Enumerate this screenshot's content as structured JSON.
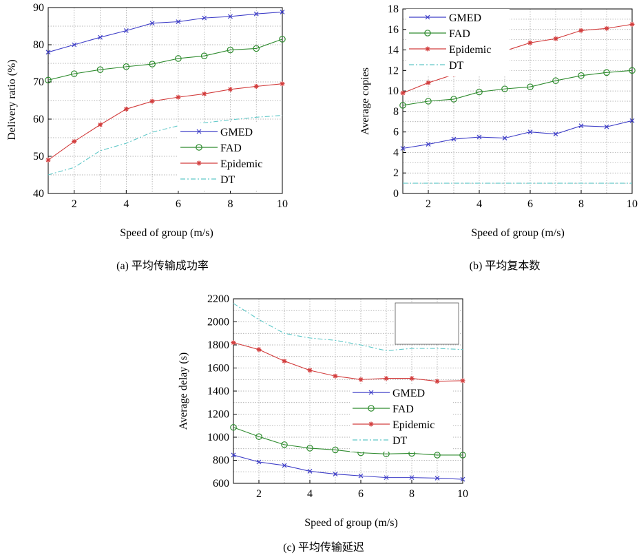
{
  "colors": {
    "GMED": "#3f3fc8",
    "FAD": "#2e8b2e",
    "Epidemic": "#d23c3c",
    "DT": "#5fc8c8",
    "grid": "#9a9a9a",
    "frame": "#000000"
  },
  "chart_data": [
    {
      "id": "a",
      "type": "line",
      "caption": "(a)  平均传输成功率",
      "xlabel": "Speed of group (m/s)",
      "ylabel": "Delivery ratio (%)",
      "xlim": [
        1,
        10
      ],
      "ylim": [
        40,
        90
      ],
      "xticks": [
        2,
        4,
        6,
        8,
        10
      ],
      "yticks": [
        40,
        50,
        60,
        70,
        80,
        90
      ],
      "grid": true,
      "legend_position": "bottom-right",
      "x": [
        1,
        2,
        3,
        4,
        5,
        6,
        7,
        8,
        9,
        10
      ],
      "series": [
        {
          "name": "GMED",
          "marker": "x",
          "style": "solid",
          "values": [
            78,
            80,
            82,
            83.8,
            85.8,
            86.2,
            87.2,
            87.6,
            88.3,
            88.8
          ]
        },
        {
          "name": "FAD",
          "marker": "o",
          "style": "solid",
          "values": [
            70.5,
            72.2,
            73.3,
            74.1,
            74.8,
            76.3,
            77,
            78.6,
            79,
            81.5
          ]
        },
        {
          "name": "Epidemic",
          "marker": "*",
          "style": "solid",
          "values": [
            49,
            54,
            58.5,
            62.7,
            64.8,
            65.9,
            66.8,
            68,
            68.8,
            69.5
          ]
        },
        {
          "name": "DT",
          "marker": "none",
          "style": "dashdot",
          "values": [
            45,
            47,
            51.5,
            53.5,
            56.5,
            58.2,
            59,
            59.8,
            60.5,
            61
          ]
        }
      ]
    },
    {
      "id": "b",
      "type": "line",
      "caption": "(b)  平均复本数",
      "xlabel": "Speed of group (m/s)",
      "ylabel": "Average copies",
      "xlim": [
        1,
        10
      ],
      "ylim": [
        0,
        18
      ],
      "xticks": [
        2,
        4,
        6,
        8,
        10
      ],
      "yticks": [
        0,
        2,
        4,
        6,
        8,
        10,
        12,
        14,
        16,
        18
      ],
      "grid": true,
      "legend_position": "top-left",
      "x": [
        1,
        2,
        3,
        4,
        5,
        6,
        7,
        8,
        9,
        10
      ],
      "series": [
        {
          "name": "GMED",
          "marker": "x",
          "style": "solid",
          "values": [
            4.4,
            4.8,
            5.3,
            5.5,
            5.4,
            6,
            5.8,
            6.6,
            6.5,
            7.1
          ]
        },
        {
          "name": "FAD",
          "marker": "o",
          "style": "solid",
          "values": [
            8.6,
            9,
            9.2,
            9.9,
            10.2,
            10.4,
            11,
            11.5,
            11.8,
            12
          ]
        },
        {
          "name": "Epidemic",
          "marker": "*",
          "style": "solid",
          "values": [
            9.8,
            10.8,
            11.6,
            12.9,
            13.9,
            14.7,
            15.1,
            15.9,
            16.1,
            16.5
          ]
        },
        {
          "name": "DT",
          "marker": "none",
          "style": "dashdot",
          "values": [
            1,
            1,
            1,
            1,
            1,
            1,
            1,
            1,
            1,
            1
          ]
        }
      ]
    },
    {
      "id": "c",
      "type": "line",
      "caption": "(c)  平均传输延迟",
      "xlabel": "Speed of group (m/s)",
      "ylabel": "Average delay (s)",
      "xlim": [
        1,
        10
      ],
      "ylim": [
        600,
        2200
      ],
      "xticks": [
        2,
        4,
        6,
        8,
        10
      ],
      "yticks": [
        600,
        800,
        1000,
        1200,
        1400,
        1600,
        1800,
        2000,
        2200
      ],
      "grid": true,
      "legend_position": "middle-right",
      "x": [
        1,
        2,
        3,
        4,
        5,
        6,
        7,
        8,
        9,
        10
      ],
      "series": [
        {
          "name": "GMED",
          "marker": "x",
          "style": "solid",
          "values": [
            845,
            785,
            755,
            705,
            680,
            665,
            650,
            650,
            645,
            635
          ]
        },
        {
          "name": "FAD",
          "marker": "o",
          "style": "solid",
          "values": [
            1085,
            1005,
            935,
            905,
            890,
            865,
            855,
            860,
            845,
            845
          ]
        },
        {
          "name": "Epidemic",
          "marker": "*",
          "style": "solid",
          "values": [
            1820,
            1760,
            1660,
            1580,
            1530,
            1500,
            1510,
            1510,
            1485,
            1490
          ]
        },
        {
          "name": "DT",
          "marker": "none",
          "style": "dashdot",
          "values": [
            2160,
            2020,
            1900,
            1860,
            1840,
            1800,
            1750,
            1770,
            1770,
            1760
          ]
        }
      ]
    }
  ]
}
